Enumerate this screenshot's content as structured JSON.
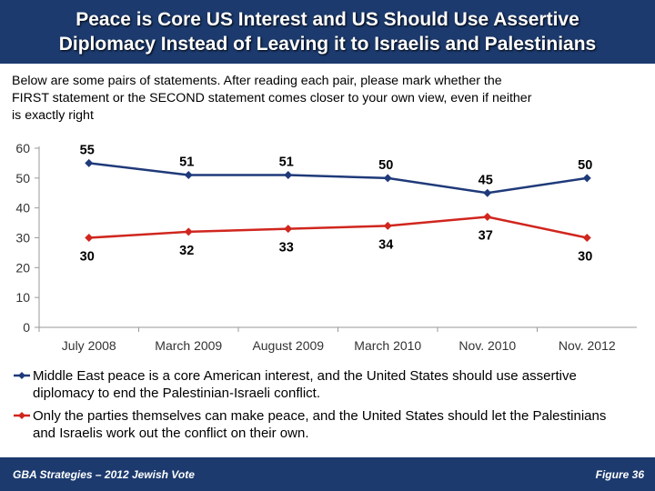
{
  "title": {
    "line1": "Peace is Core US Interest and US Should Use Assertive",
    "line2": "Diplomacy Instead of Leaving it to Israelis and Palestinians"
  },
  "intro": {
    "line1": "Below are some pairs of statements. After reading each pair, please mark whether the",
    "line2": "FIRST statement or the SECOND statement comes closer to your own view, even if neither",
    "line3": "is exactly right"
  },
  "colors": {
    "header_bg": "#1c3a6e",
    "series1": "#1f3a7a",
    "series2": "#d0261e"
  },
  "chart_data": {
    "type": "line",
    "categories": [
      "July 2008",
      "March 2009",
      "August 2009",
      "March 2010",
      "Nov. 2010",
      "Nov. 2012"
    ],
    "series": [
      {
        "name": "Middle East peace is a core American interest, and the United States should use assertive diplomacy to end the Palestinian-Israeli conflict.",
        "legend_lines": [
          "Middle East peace is a core American interest, and the United States should use assertive",
          "diplomacy to end the Palestinian-Israeli conflict."
        ],
        "values": [
          55,
          51,
          51,
          50,
          45,
          50
        ],
        "color": "#1f3a7a",
        "marker": "diamond"
      },
      {
        "name": "Only the parties themselves can make peace, and the United States should let the Palestinians and Israelis work out the conflict on their own.",
        "legend_lines": [
          "Only the parties themselves can make peace, and the United States should let the Palestinians",
          "and Israelis work out the conflict on their own."
        ],
        "values": [
          30,
          32,
          33,
          34,
          37,
          30
        ],
        "color": "#d0261e",
        "marker": "diamond"
      }
    ],
    "yticks": [
      0,
      10,
      20,
      30,
      40,
      50,
      60
    ],
    "ylim": [
      0,
      60
    ],
    "xlabel": "",
    "ylabel": "",
    "grid": false,
    "legend_position": "bottom"
  },
  "footer": {
    "left": "GBA Strategies – 2012 Jewish Vote",
    "right": "Figure  36"
  }
}
